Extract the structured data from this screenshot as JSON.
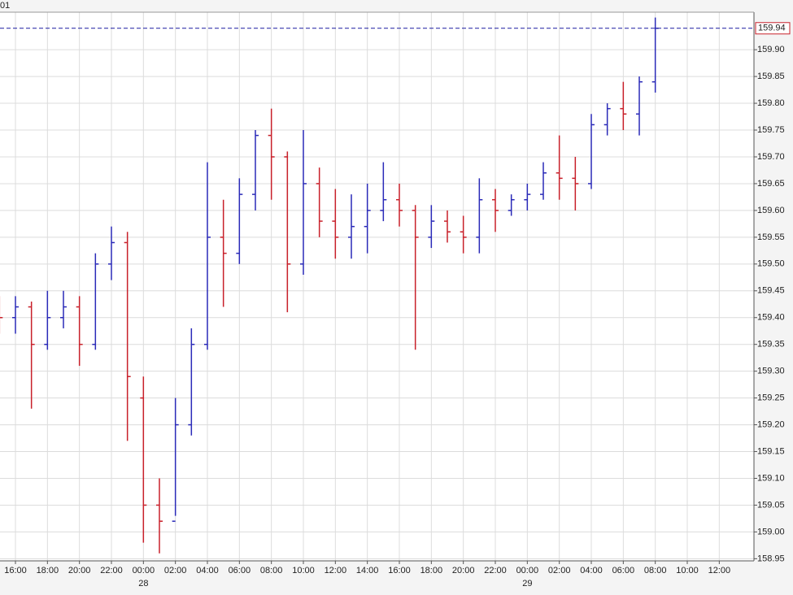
{
  "chart_data": {
    "type": "ohlc",
    "title": "01",
    "categories": [
      null,
      "16:00",
      null,
      "18:00",
      null,
      "20:00",
      null,
      "22:00",
      null,
      "00:00",
      null,
      "02:00",
      null,
      "04:00",
      null,
      "06:00",
      null,
      "08:00",
      null,
      "10:00",
      null,
      "12:00",
      null,
      "14:00",
      null,
      "16:00",
      null,
      "18:00",
      null,
      "20:00",
      null,
      "22:00",
      null,
      "00:00",
      null,
      "02:00",
      null,
      "04:00",
      null,
      "06:00",
      null,
      "08:00",
      null,
      "10:00",
      null,
      "12:00",
      null
    ],
    "x_sublabels": [
      null,
      null,
      null,
      null,
      null,
      null,
      null,
      null,
      null,
      "28",
      null,
      null,
      null,
      null,
      null,
      null,
      null,
      null,
      null,
      null,
      null,
      null,
      null,
      null,
      null,
      null,
      null,
      null,
      null,
      null,
      null,
      null,
      null,
      "29",
      null,
      null,
      null,
      null,
      null,
      null,
      null,
      null,
      null,
      null,
      null,
      null,
      null
    ],
    "open": [
      159.42,
      159.4,
      159.42,
      159.35,
      159.4,
      159.42,
      159.35,
      159.5,
      159.54,
      159.25,
      159.05,
      159.02,
      159.2,
      159.35,
      159.55,
      159.52,
      159.63,
      159.74,
      159.7,
      159.5,
      159.65,
      159.58,
      159.55,
      159.57,
      159.6,
      159.62,
      159.6,
      159.55,
      159.58,
      159.56,
      159.55,
      159.62,
      159.6,
      159.62,
      159.63,
      159.67,
      159.66,
      159.65,
      159.76,
      159.79,
      159.78,
      159.84,
      null,
      null,
      null,
      null,
      null
    ],
    "high": [
      159.44,
      159.44,
      159.43,
      159.45,
      159.45,
      159.44,
      159.52,
      159.57,
      159.56,
      159.29,
      159.1,
      159.25,
      159.38,
      159.69,
      159.62,
      159.66,
      159.75,
      159.79,
      159.71,
      159.75,
      159.68,
      159.64,
      159.63,
      159.65,
      159.69,
      159.65,
      159.61,
      159.61,
      159.6,
      159.59,
      159.66,
      159.64,
      159.63,
      159.65,
      159.69,
      159.74,
      159.7,
      159.78,
      159.8,
      159.84,
      159.85,
      159.96,
      null,
      null,
      null,
      null,
      null
    ],
    "low": [
      159.37,
      159.37,
      159.23,
      159.34,
      159.38,
      159.31,
      159.34,
      159.47,
      159.17,
      158.98,
      158.96,
      159.03,
      159.18,
      159.34,
      159.42,
      159.5,
      159.6,
      159.62,
      159.41,
      159.48,
      159.55,
      159.51,
      159.51,
      159.52,
      159.58,
      159.57,
      159.34,
      159.53,
      159.54,
      159.52,
      159.52,
      159.56,
      159.59,
      159.6,
      159.62,
      159.62,
      159.6,
      159.64,
      159.74,
      159.75,
      159.74,
      159.82,
      null,
      null,
      null,
      null,
      null
    ],
    "close": [
      159.4,
      159.42,
      159.35,
      159.4,
      159.42,
      159.35,
      159.5,
      159.54,
      159.29,
      159.05,
      159.02,
      159.2,
      159.35,
      159.55,
      159.52,
      159.63,
      159.74,
      159.7,
      159.5,
      159.65,
      159.58,
      159.55,
      159.57,
      159.6,
      159.62,
      159.6,
      159.55,
      159.58,
      159.56,
      159.55,
      159.62,
      159.6,
      159.62,
      159.63,
      159.67,
      159.66,
      159.65,
      159.76,
      159.79,
      159.78,
      159.84,
      159.94,
      null,
      null,
      null,
      null,
      null
    ],
    "up_color": "#2a2ab8",
    "down_color": "#c8202a",
    "last_price": 159.94,
    "last_price_color": "#c8202a",
    "last_line_color": "#1a1aa0",
    "ylim": [
      158.946,
      159.97
    ],
    "yticks": [
      158.95,
      {
        "value": 159.0,
        "label": "159.00"
      },
      159.05,
      {
        "value": 159.1,
        "label": "159.10"
      },
      159.15,
      {
        "value": 159.2,
        "label": "159.20"
      },
      159.25,
      {
        "value": 159.3,
        "label": "159.30"
      },
      159.35,
      {
        "value": 159.4,
        "label": "159.40"
      },
      159.45,
      {
        "value": 159.5,
        "label": "159.50"
      },
      159.55,
      {
        "value": 159.6,
        "label": "159.60"
      },
      159.65,
      {
        "value": 159.7,
        "label": "159.70"
      },
      159.75,
      {
        "value": 159.8,
        "label": "159.80"
      },
      159.85,
      {
        "value": 159.9,
        "label": "159.90"
      }
    ],
    "grid": true
  }
}
